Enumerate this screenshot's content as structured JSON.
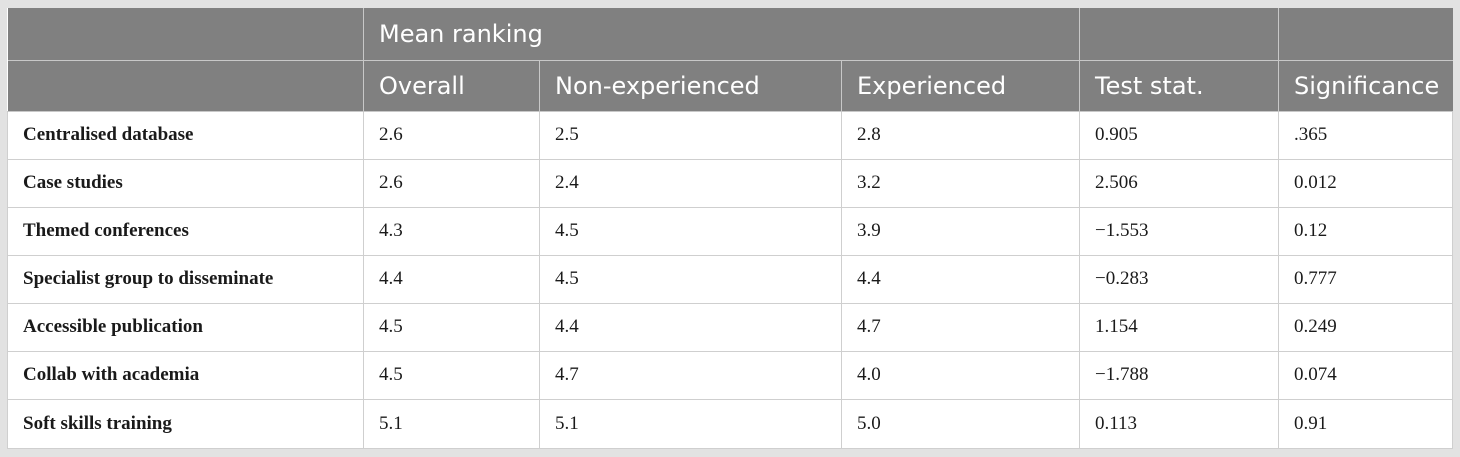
{
  "header": {
    "group_label": "Mean ranking",
    "columns": [
      "Overall",
      "Non-experienced",
      "Experienced",
      "Test stat.",
      "Significance"
    ]
  },
  "rows": [
    {
      "label": "Centralised database",
      "cells": [
        "2.6",
        "2.5",
        "2.8",
        "0.905",
        ".365"
      ]
    },
    {
      "label": "Case studies",
      "cells": [
        "2.6",
        "2.4",
        "3.2",
        "2.506",
        "0.012"
      ]
    },
    {
      "label": "Themed conferences",
      "cells": [
        "4.3",
        "4.5",
        "3.9",
        "−1.553",
        "0.12"
      ]
    },
    {
      "label": "Specialist group to disseminate",
      "cells": [
        "4.4",
        "4.5",
        "4.4",
        "−0.283",
        "0.777"
      ]
    },
    {
      "label": "Accessible publication",
      "cells": [
        "4.5",
        "4.4",
        "4.7",
        "1.154",
        "0.249"
      ]
    },
    {
      "label": "Collab with academia",
      "cells": [
        "4.5",
        "4.7",
        "4.0",
        "−1.788",
        "0.074"
      ]
    },
    {
      "label": "Soft skills training",
      "cells": [
        "5.1",
        "5.1",
        "5.0",
        "0.113",
        "0.91"
      ]
    }
  ]
}
